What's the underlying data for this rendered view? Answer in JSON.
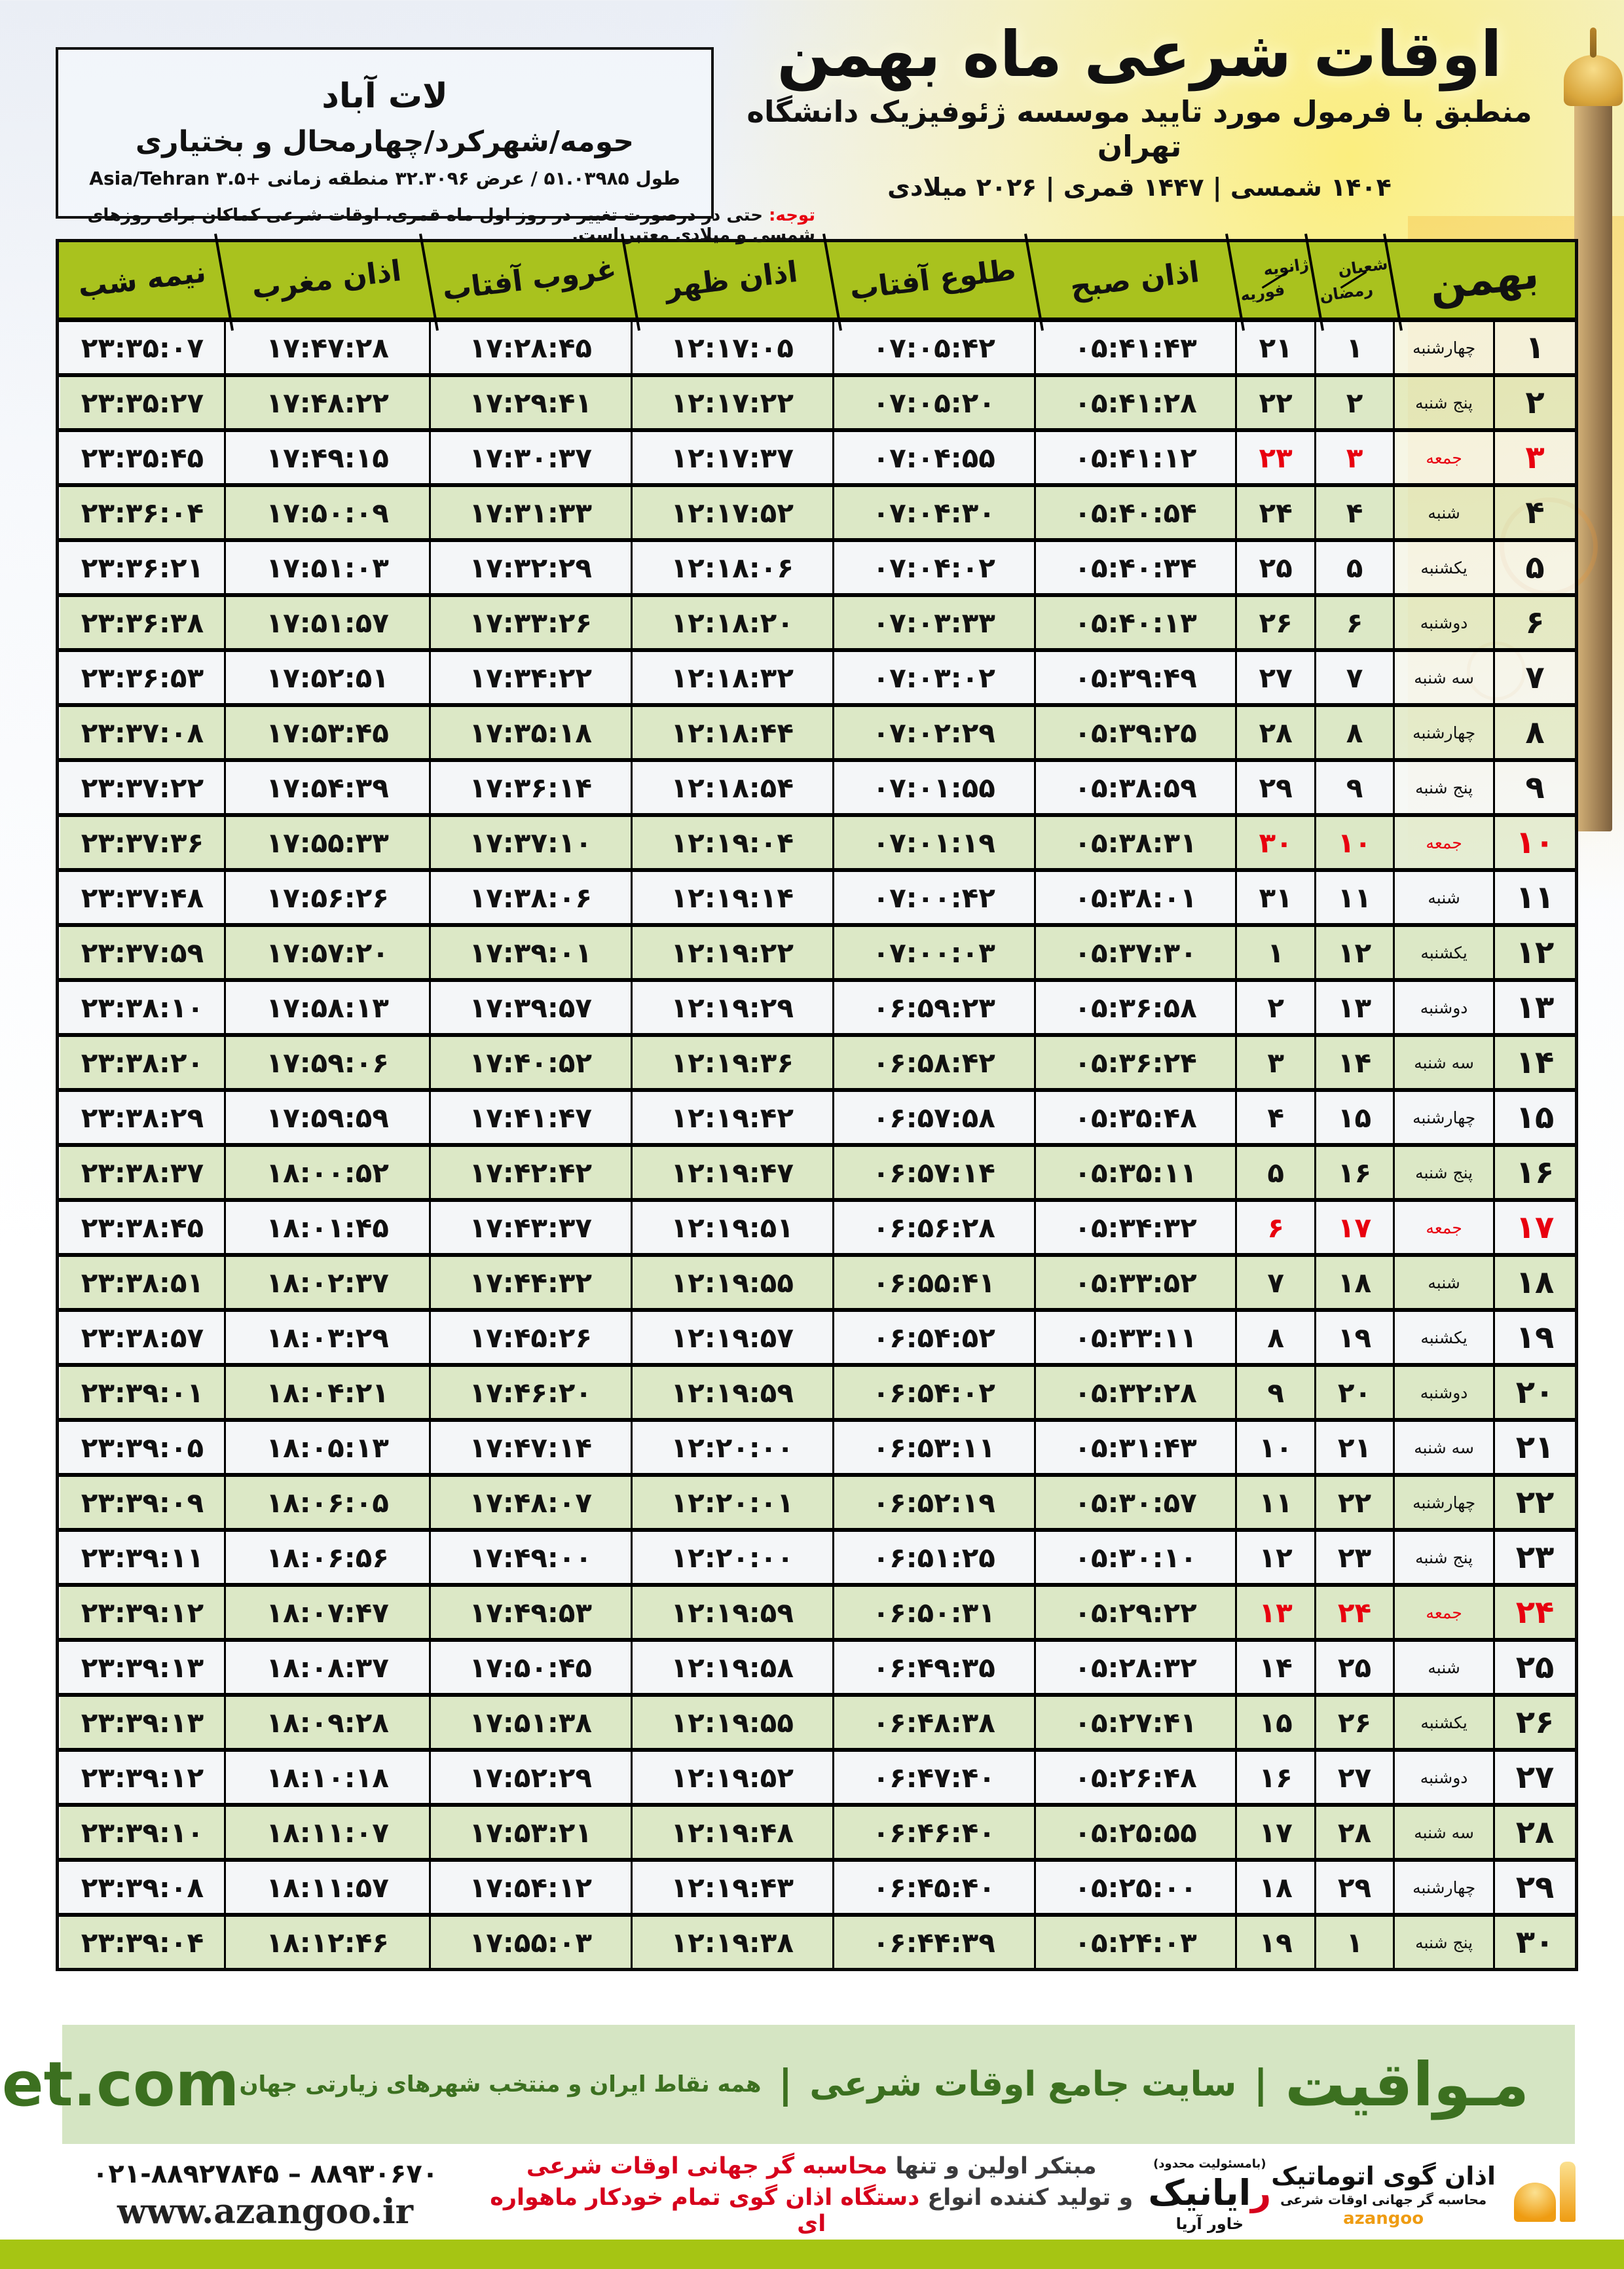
{
  "header": {
    "title": "اوقات شرعی ماه بهمن",
    "subtitle": "منطبق با فرمول مورد تایید موسسه ژئوفیزیک دانشگاه تهران",
    "dates": "۱۴۰۴ شمسی | ۱۴۴۷ قمری | ۲۰۲۶ میلادی"
  },
  "location": {
    "name": "لات آباد",
    "region": "حومه/شهرکرد/چهارمحال و بختیاری",
    "coords": "طول ۵۱.۰۳۹۸۵ / عرض ۳۲.۳۰۹۶ منطقه زمانی +۳.۵ Asia/Tehran"
  },
  "notice": {
    "label": "توجه:",
    "text": " حتی در درصورت تغییر در روز اول ماه قمری، اوقات شرعی کماکان برای روزهای شمسی و میلادی معتبر است."
  },
  "table": {
    "month_label": "بهمن",
    "lunar_header": {
      "top": "شعبان",
      "bottom": "رمضان"
    },
    "greg_header": {
      "top": "ژانویه",
      "bottom": "فوریه"
    },
    "time_headers": [
      "اذان صبح",
      "طلوع آفتاب",
      "اذان ظهر",
      "غروب آفتاب",
      "اذان مغرب",
      "نیمه شب"
    ],
    "rows": [
      {
        "day": "۱",
        "weekday": "چهارشنبه",
        "lunar": "۱",
        "greg": "۲۱",
        "fajr": "۰۵:۴۱:۴۳",
        "sunrise": "۰۷:۰۵:۴۲",
        "noon": "۱۲:۱۷:۰۵",
        "sunset": "۱۷:۲۸:۴۵",
        "maghrib": "۱۷:۴۷:۲۸",
        "midnight": "۲۳:۳۵:۰۷",
        "friday": false
      },
      {
        "day": "۲",
        "weekday": "پنج شنبه",
        "lunar": "۲",
        "greg": "۲۲",
        "fajr": "۰۵:۴۱:۲۸",
        "sunrise": "۰۷:۰۵:۲۰",
        "noon": "۱۲:۱۷:۲۲",
        "sunset": "۱۷:۲۹:۴۱",
        "maghrib": "۱۷:۴۸:۲۲",
        "midnight": "۲۳:۳۵:۲۷",
        "friday": false
      },
      {
        "day": "۳",
        "weekday": "جمعه",
        "lunar": "۳",
        "greg": "۲۳",
        "fajr": "۰۵:۴۱:۱۲",
        "sunrise": "۰۷:۰۴:۵۵",
        "noon": "۱۲:۱۷:۳۷",
        "sunset": "۱۷:۳۰:۳۷",
        "maghrib": "۱۷:۴۹:۱۵",
        "midnight": "۲۳:۳۵:۴۵",
        "friday": true
      },
      {
        "day": "۴",
        "weekday": "شنبه",
        "lunar": "۴",
        "greg": "۲۴",
        "fajr": "۰۵:۴۰:۵۴",
        "sunrise": "۰۷:۰۴:۳۰",
        "noon": "۱۲:۱۷:۵۲",
        "sunset": "۱۷:۳۱:۳۳",
        "maghrib": "۱۷:۵۰:۰۹",
        "midnight": "۲۳:۳۶:۰۴",
        "friday": false
      },
      {
        "day": "۵",
        "weekday": "یکشنبه",
        "lunar": "۵",
        "greg": "۲۵",
        "fajr": "۰۵:۴۰:۳۴",
        "sunrise": "۰۷:۰۴:۰۲",
        "noon": "۱۲:۱۸:۰۶",
        "sunset": "۱۷:۳۲:۲۹",
        "maghrib": "۱۷:۵۱:۰۳",
        "midnight": "۲۳:۳۶:۲۱",
        "friday": false
      },
      {
        "day": "۶",
        "weekday": "دوشنبه",
        "lunar": "۶",
        "greg": "۲۶",
        "fajr": "۰۵:۴۰:۱۳",
        "sunrise": "۰۷:۰۳:۳۳",
        "noon": "۱۲:۱۸:۲۰",
        "sunset": "۱۷:۳۳:۲۶",
        "maghrib": "۱۷:۵۱:۵۷",
        "midnight": "۲۳:۳۶:۳۸",
        "friday": false
      },
      {
        "day": "۷",
        "weekday": "سه شنبه",
        "lunar": "۷",
        "greg": "۲۷",
        "fajr": "۰۵:۳۹:۴۹",
        "sunrise": "۰۷:۰۳:۰۲",
        "noon": "۱۲:۱۸:۳۲",
        "sunset": "۱۷:۳۴:۲۲",
        "maghrib": "۱۷:۵۲:۵۱",
        "midnight": "۲۳:۳۶:۵۳",
        "friday": false
      },
      {
        "day": "۸",
        "weekday": "چهارشنبه",
        "lunar": "۸",
        "greg": "۲۸",
        "fajr": "۰۵:۳۹:۲۵",
        "sunrise": "۰۷:۰۲:۲۹",
        "noon": "۱۲:۱۸:۴۴",
        "sunset": "۱۷:۳۵:۱۸",
        "maghrib": "۱۷:۵۳:۴۵",
        "midnight": "۲۳:۳۷:۰۸",
        "friday": false
      },
      {
        "day": "۹",
        "weekday": "پنج شنبه",
        "lunar": "۹",
        "greg": "۲۹",
        "fajr": "۰۵:۳۸:۵۹",
        "sunrise": "۰۷:۰۱:۵۵",
        "noon": "۱۲:۱۸:۵۴",
        "sunset": "۱۷:۳۶:۱۴",
        "maghrib": "۱۷:۵۴:۳۹",
        "midnight": "۲۳:۳۷:۲۲",
        "friday": false
      },
      {
        "day": "۱۰",
        "weekday": "جمعه",
        "lunar": "۱۰",
        "greg": "۳۰",
        "fajr": "۰۵:۳۸:۳۱",
        "sunrise": "۰۷:۰۱:۱۹",
        "noon": "۱۲:۱۹:۰۴",
        "sunset": "۱۷:۳۷:۱۰",
        "maghrib": "۱۷:۵۵:۳۳",
        "midnight": "۲۳:۳۷:۳۶",
        "friday": true
      },
      {
        "day": "۱۱",
        "weekday": "شنبه",
        "lunar": "۱۱",
        "greg": "۳۱",
        "fajr": "۰۵:۳۸:۰۱",
        "sunrise": "۰۷:۰۰:۴۲",
        "noon": "۱۲:۱۹:۱۴",
        "sunset": "۱۷:۳۸:۰۶",
        "maghrib": "۱۷:۵۶:۲۶",
        "midnight": "۲۳:۳۷:۴۸",
        "friday": false
      },
      {
        "day": "۱۲",
        "weekday": "یکشنبه",
        "lunar": "۱۲",
        "greg": "۱",
        "fajr": "۰۵:۳۷:۳۰",
        "sunrise": "۰۷:۰۰:۰۳",
        "noon": "۱۲:۱۹:۲۲",
        "sunset": "۱۷:۳۹:۰۱",
        "maghrib": "۱۷:۵۷:۲۰",
        "midnight": "۲۳:۳۷:۵۹",
        "friday": false
      },
      {
        "day": "۱۳",
        "weekday": "دوشنبه",
        "lunar": "۱۳",
        "greg": "۲",
        "fajr": "۰۵:۳۶:۵۸",
        "sunrise": "۰۶:۵۹:۲۳",
        "noon": "۱۲:۱۹:۲۹",
        "sunset": "۱۷:۳۹:۵۷",
        "maghrib": "۱۷:۵۸:۱۳",
        "midnight": "۲۳:۳۸:۱۰",
        "friday": false
      },
      {
        "day": "۱۴",
        "weekday": "سه شنبه",
        "lunar": "۱۴",
        "greg": "۳",
        "fajr": "۰۵:۳۶:۲۴",
        "sunrise": "۰۶:۵۸:۴۲",
        "noon": "۱۲:۱۹:۳۶",
        "sunset": "۱۷:۴۰:۵۲",
        "maghrib": "۱۷:۵۹:۰۶",
        "midnight": "۲۳:۳۸:۲۰",
        "friday": false
      },
      {
        "day": "۱۵",
        "weekday": "چهارشنبه",
        "lunar": "۱۵",
        "greg": "۴",
        "fajr": "۰۵:۳۵:۴۸",
        "sunrise": "۰۶:۵۷:۵۸",
        "noon": "۱۲:۱۹:۴۲",
        "sunset": "۱۷:۴۱:۴۷",
        "maghrib": "۱۷:۵۹:۵۹",
        "midnight": "۲۳:۳۸:۲۹",
        "friday": false
      },
      {
        "day": "۱۶",
        "weekday": "پنج شنبه",
        "lunar": "۱۶",
        "greg": "۵",
        "fajr": "۰۵:۳۵:۱۱",
        "sunrise": "۰۶:۵۷:۱۴",
        "noon": "۱۲:۱۹:۴۷",
        "sunset": "۱۷:۴۲:۴۲",
        "maghrib": "۱۸:۰۰:۵۲",
        "midnight": "۲۳:۳۸:۳۷",
        "friday": false
      },
      {
        "day": "۱۷",
        "weekday": "جمعه",
        "lunar": "۱۷",
        "greg": "۶",
        "fajr": "۰۵:۳۴:۳۲",
        "sunrise": "۰۶:۵۶:۲۸",
        "noon": "۱۲:۱۹:۵۱",
        "sunset": "۱۷:۴۳:۳۷",
        "maghrib": "۱۸:۰۱:۴۵",
        "midnight": "۲۳:۳۸:۴۵",
        "friday": true
      },
      {
        "day": "۱۸",
        "weekday": "شنبه",
        "lunar": "۱۸",
        "greg": "۷",
        "fajr": "۰۵:۳۳:۵۲",
        "sunrise": "۰۶:۵۵:۴۱",
        "noon": "۱۲:۱۹:۵۵",
        "sunset": "۱۷:۴۴:۳۲",
        "maghrib": "۱۸:۰۲:۳۷",
        "midnight": "۲۳:۳۸:۵۱",
        "friday": false
      },
      {
        "day": "۱۹",
        "weekday": "یکشنبه",
        "lunar": "۱۹",
        "greg": "۸",
        "fajr": "۰۵:۳۳:۱۱",
        "sunrise": "۰۶:۵۴:۵۲",
        "noon": "۱۲:۱۹:۵۷",
        "sunset": "۱۷:۴۵:۲۶",
        "maghrib": "۱۸:۰۳:۲۹",
        "midnight": "۲۳:۳۸:۵۷",
        "friday": false
      },
      {
        "day": "۲۰",
        "weekday": "دوشنبه",
        "lunar": "۲۰",
        "greg": "۹",
        "fajr": "۰۵:۳۲:۲۸",
        "sunrise": "۰۶:۵۴:۰۲",
        "noon": "۱۲:۱۹:۵۹",
        "sunset": "۱۷:۴۶:۲۰",
        "maghrib": "۱۸:۰۴:۲۱",
        "midnight": "۲۳:۳۹:۰۱",
        "friday": false
      },
      {
        "day": "۲۱",
        "weekday": "سه شنبه",
        "lunar": "۲۱",
        "greg": "۱۰",
        "fajr": "۰۵:۳۱:۴۳",
        "sunrise": "۰۶:۵۳:۱۱",
        "noon": "۱۲:۲۰:۰۰",
        "sunset": "۱۷:۴۷:۱۴",
        "maghrib": "۱۸:۰۵:۱۳",
        "midnight": "۲۳:۳۹:۰۵",
        "friday": false
      },
      {
        "day": "۲۲",
        "weekday": "چهارشنبه",
        "lunar": "۲۲",
        "greg": "۱۱",
        "fajr": "۰۵:۳۰:۵۷",
        "sunrise": "۰۶:۵۲:۱۹",
        "noon": "۱۲:۲۰:۰۱",
        "sunset": "۱۷:۴۸:۰۷",
        "maghrib": "۱۸:۰۶:۰۵",
        "midnight": "۲۳:۳۹:۰۹",
        "friday": false
      },
      {
        "day": "۲۳",
        "weekday": "پنج شنبه",
        "lunar": "۲۳",
        "greg": "۱۲",
        "fajr": "۰۵:۳۰:۱۰",
        "sunrise": "۰۶:۵۱:۲۵",
        "noon": "۱۲:۲۰:۰۰",
        "sunset": "۱۷:۴۹:۰۰",
        "maghrib": "۱۸:۰۶:۵۶",
        "midnight": "۲۳:۳۹:۱۱",
        "friday": false
      },
      {
        "day": "۲۴",
        "weekday": "جمعه",
        "lunar": "۲۴",
        "greg": "۱۳",
        "fajr": "۰۵:۲۹:۲۲",
        "sunrise": "۰۶:۵۰:۳۱",
        "noon": "۱۲:۱۹:۵۹",
        "sunset": "۱۷:۴۹:۵۳",
        "maghrib": "۱۸:۰۷:۴۷",
        "midnight": "۲۳:۳۹:۱۲",
        "friday": true
      },
      {
        "day": "۲۵",
        "weekday": "شنبه",
        "lunar": "۲۵",
        "greg": "۱۴",
        "fajr": "۰۵:۲۸:۳۲",
        "sunrise": "۰۶:۴۹:۳۵",
        "noon": "۱۲:۱۹:۵۸",
        "sunset": "۱۷:۵۰:۴۵",
        "maghrib": "۱۸:۰۸:۳۷",
        "midnight": "۲۳:۳۹:۱۳",
        "friday": false
      },
      {
        "day": "۲۶",
        "weekday": "یکشنبه",
        "lunar": "۲۶",
        "greg": "۱۵",
        "fajr": "۰۵:۲۷:۴۱",
        "sunrise": "۰۶:۴۸:۳۸",
        "noon": "۱۲:۱۹:۵۵",
        "sunset": "۱۷:۵۱:۳۸",
        "maghrib": "۱۸:۰۹:۲۸",
        "midnight": "۲۳:۳۹:۱۳",
        "friday": false
      },
      {
        "day": "۲۷",
        "weekday": "دوشنبه",
        "lunar": "۲۷",
        "greg": "۱۶",
        "fajr": "۰۵:۲۶:۴۸",
        "sunrise": "۰۶:۴۷:۴۰",
        "noon": "۱۲:۱۹:۵۲",
        "sunset": "۱۷:۵۲:۲۹",
        "maghrib": "۱۸:۱۰:۱۸",
        "midnight": "۲۳:۳۹:۱۲",
        "friday": false
      },
      {
        "day": "۲۸",
        "weekday": "سه شنبه",
        "lunar": "۲۸",
        "greg": "۱۷",
        "fajr": "۰۵:۲۵:۵۵",
        "sunrise": "۰۶:۴۶:۴۰",
        "noon": "۱۲:۱۹:۴۸",
        "sunset": "۱۷:۵۳:۲۱",
        "maghrib": "۱۸:۱۱:۰۷",
        "midnight": "۲۳:۳۹:۱۰",
        "friday": false
      },
      {
        "day": "۲۹",
        "weekday": "چهارشنبه",
        "lunar": "۲۹",
        "greg": "۱۸",
        "fajr": "۰۵:۲۵:۰۰",
        "sunrise": "۰۶:۴۵:۴۰",
        "noon": "۱۲:۱۹:۴۳",
        "sunset": "۱۷:۵۴:۱۲",
        "maghrib": "۱۸:۱۱:۵۷",
        "midnight": "۲۳:۳۹:۰۸",
        "friday": false
      },
      {
        "day": "۳۰",
        "weekday": "پنج شنبه",
        "lunar": "۱",
        "greg": "۱۹",
        "fajr": "۰۵:۲۴:۰۳",
        "sunrise": "۰۶:۴۴:۳۹",
        "noon": "۱۲:۱۹:۳۸",
        "sunset": "۱۷:۵۵:۰۳",
        "maghrib": "۱۸:۱۲:۴۶",
        "midnight": "۲۳:۳۹:۰۴",
        "friday": false
      }
    ]
  },
  "mavaqeet_bar": {
    "brand": "مـواقیت",
    "separator": "|",
    "tagline1": "سایت جامع اوقات شرعی",
    "tagline2": "همه نقاط ایران و منتخب شهرهای زیارتی جهان",
    "url": "mavaqeet.com"
  },
  "footer": {
    "azangoo": {
      "line1": "اذان گوی اتوماتیک",
      "line2": "محاسبه گر جهانی اوقات شرعی",
      "brand": "azangoo"
    },
    "rayanik": {
      "small": "(بامسئولیت محدود)",
      "name_initial": "ر",
      "name_rest": "ایانیک",
      "sub": "خاور آریا"
    },
    "slogan": {
      "l1_black": "مبتکر اولین و تنها ",
      "l1_red": "محاسبه گر جهانی اوقات شرعی",
      "l2_black": "و تولید کننده انواع ",
      "l2_red": "دستگاه اذان گوی تمام خودکار ماهواره ای"
    },
    "contact": {
      "phone": "۰۲۱-۸۸۹۲۷۸۴۵ – ۸۸۹۳۰۶۷۰",
      "url": "www.azangoo.ir"
    }
  },
  "colors": {
    "header_green": "#a9c21e",
    "row_green": "#dce8c6",
    "row_light": "#f4f6f8",
    "friday_red": "#e8000f",
    "bar_bg": "#d5e5c3",
    "bar_text": "#3c7020",
    "strip_green": "#a6c513",
    "accent_red": "#d6001c"
  }
}
